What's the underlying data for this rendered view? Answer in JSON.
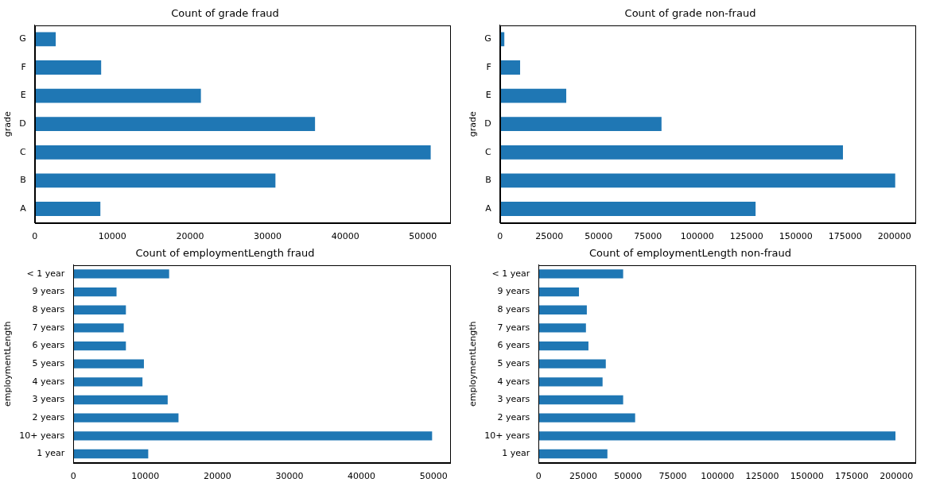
{
  "chart_data": [
    {
      "type": "bar",
      "orientation": "horizontal",
      "title": "Count of grade fraud",
      "y_label": "grade",
      "categories": [
        "A",
        "B",
        "C",
        "D",
        "E",
        "F",
        "G"
      ],
      "values": [
        8450,
        31000,
        51000,
        36100,
        21400,
        8550,
        2700
      ],
      "color": "#1f77b4",
      "xlim": [
        0,
        53500
      ],
      "xticks": [
        0,
        10000,
        20000,
        30000,
        40000,
        50000
      ],
      "grid": false
    },
    {
      "type": "bar",
      "orientation": "horizontal",
      "title": "Count of grade non-fraud",
      "y_label": "grade",
      "categories": [
        "A",
        "B",
        "C",
        "D",
        "E",
        "F",
        "G"
      ],
      "values": [
        129600,
        200400,
        173900,
        81900,
        33600,
        10200,
        2200
      ],
      "color": "#1f77b4",
      "xlim": [
        0,
        210600
      ],
      "xticks": [
        0,
        25000,
        50000,
        75000,
        100000,
        125000,
        150000,
        175000,
        200000
      ],
      "grid": false
    },
    {
      "type": "bar",
      "orientation": "horizontal",
      "title": "Count of employmentLength fraud",
      "y_label": "employmentLength",
      "categories": [
        "1 year",
        "10+ years",
        "2 years",
        "3 years",
        "4 years",
        "5 years",
        "6 years",
        "7 years",
        "8 years",
        "9 years",
        "< 1 year"
      ],
      "values": [
        10400,
        49800,
        14600,
        13100,
        9600,
        9800,
        7300,
        7000,
        7300,
        6000,
        13300
      ],
      "color": "#1f77b4",
      "xlim": [
        0,
        52300
      ],
      "xticks": [
        0,
        10000,
        20000,
        30000,
        40000,
        50000
      ],
      "grid": false
    },
    {
      "type": "bar",
      "orientation": "horizontal",
      "title": "Count of employmentLength non-fraud",
      "y_label": "employmentLength",
      "categories": [
        "1 year",
        "10+ years",
        "2 years",
        "3 years",
        "4 years",
        "5 years",
        "6 years",
        "7 years",
        "8 years",
        "9 years",
        "< 1 year"
      ],
      "values": [
        38500,
        199500,
        54000,
        47300,
        35800,
        37600,
        27900,
        26500,
        27000,
        22600,
        47300
      ],
      "color": "#1f77b4",
      "xlim": [
        0,
        210600
      ],
      "xticks": [
        0,
        25000,
        50000,
        75000,
        100000,
        125000,
        150000,
        175000,
        200000
      ],
      "grid": false
    }
  ]
}
